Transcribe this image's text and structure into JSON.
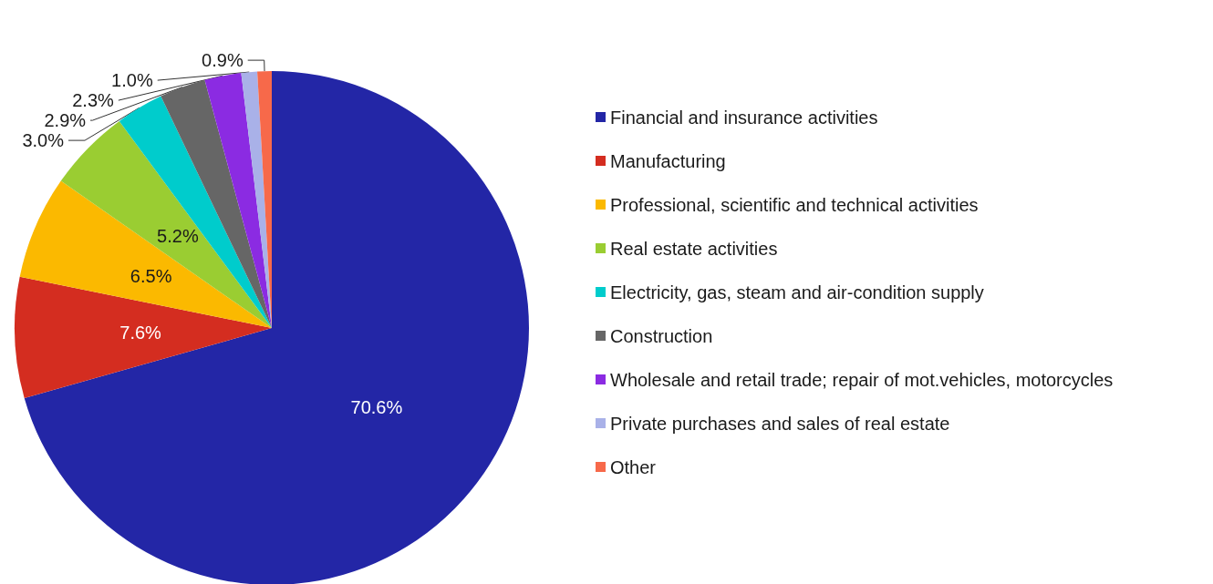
{
  "chart_data": {
    "type": "pie",
    "categories": [
      "Financial and insurance activities",
      "Manufacturing",
      "Professional, scientific and technical activities",
      "Real estate activities",
      "Electricity, gas, steam and air-condition supply",
      "Construction",
      "Wholesale and retail trade; repair of mot.vehicles, motorcycles",
      "Private purchases and sales of real estate",
      "Other"
    ],
    "values": [
      70.6,
      7.6,
      6.5,
      5.2,
      3.0,
      2.9,
      2.3,
      1.0,
      0.9
    ],
    "value_labels": [
      "70.6%",
      "7.6%",
      "6.5%",
      "5.2%",
      "3.0%",
      "2.9%",
      "2.3%",
      "1.0%",
      "0.9%"
    ],
    "colors": [
      "#2326a6",
      "#d42d20",
      "#fbb900",
      "#9acd32",
      "#00cccc",
      "#666666",
      "#8b2be2",
      "#a9b1e8",
      "#f7694a"
    ],
    "legend": "right"
  }
}
